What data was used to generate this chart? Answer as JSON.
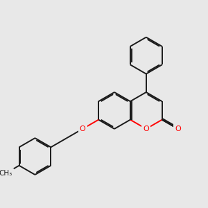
{
  "bg": "#e8e8e8",
  "bond_color": "#1a1a1a",
  "oxygen_color": "#ff0000",
  "lw": 1.4,
  "dbo": 0.018,
  "figsize": [
    3.0,
    3.0
  ],
  "dpi": 100,
  "xlim": [
    0,
    3.0
  ],
  "ylim": [
    0,
    3.0
  ]
}
